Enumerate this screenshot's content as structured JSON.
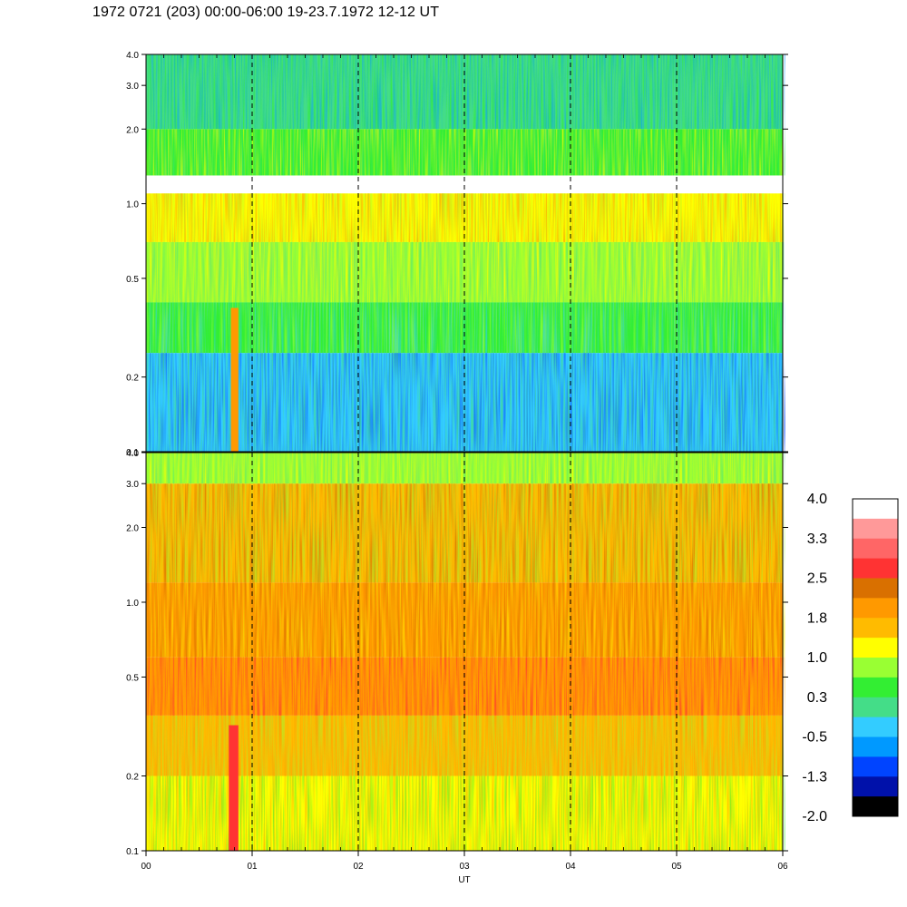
{
  "title": "1972 0721 (203) 00:00-06:00 19-23.7.1972  12-12 UT",
  "chart_data": [
    {
      "type": "heatmap",
      "panel": "upper",
      "xlabel": "",
      "ylabel": "",
      "x_range": [
        0,
        6
      ],
      "y_range": [
        0.1,
        4.0
      ],
      "y_scale": "log",
      "y_ticks": [
        "4.0",
        "3.0",
        "2.0",
        "1.0",
        "0.5",
        "0.2",
        "0.1"
      ],
      "y_tick_values": [
        4.0,
        3.0,
        2.0,
        1.0,
        0.5,
        0.2,
        0.1
      ],
      "vertical_dashed_lines_at_hours": [
        1,
        2,
        3,
        4,
        5
      ],
      "bands": [
        {
          "y_from": 2.0,
          "y_to": 4.0,
          "level": 0.0,
          "note": "green/cyan mix"
        },
        {
          "y_from": 1.3,
          "y_to": 2.0,
          "level": 0.6
        },
        {
          "y_from": 0.7,
          "y_to": 1.1,
          "level": 1.3
        },
        {
          "y_from": 0.4,
          "y_to": 0.7,
          "level": 0.8
        },
        {
          "y_from": 0.25,
          "y_to": 0.4,
          "level": 0.4
        },
        {
          "y_from": 0.1,
          "y_to": 0.25,
          "level": -0.4
        }
      ],
      "features": [
        {
          "x_from": 0.8,
          "x_to": 0.87,
          "y_from": 0.1,
          "y_to": 0.38,
          "level": 1.8
        }
      ]
    },
    {
      "type": "heatmap",
      "panel": "lower",
      "xlabel": "UT",
      "ylabel": "",
      "x_range": [
        0,
        6
      ],
      "x_ticks": [
        "00",
        "01",
        "02",
        "03",
        "04",
        "05",
        "06"
      ],
      "x_tick_values": [
        0,
        1,
        2,
        3,
        4,
        5,
        6
      ],
      "y_range": [
        0.1,
        4.0
      ],
      "y_scale": "log",
      "y_ticks": [
        "4.0",
        "3.0",
        "2.0",
        "1.0",
        "0.5",
        "0.2",
        "0.1"
      ],
      "y_tick_values": [
        4.0,
        3.0,
        2.0,
        1.0,
        0.5,
        0.2,
        0.1
      ],
      "vertical_dashed_lines_at_hours": [
        1,
        2,
        3,
        4,
        5
      ],
      "bands": [
        {
          "y_from": 3.0,
          "y_to": 4.0,
          "level": 0.8
        },
        {
          "y_from": 1.2,
          "y_to": 3.0,
          "level": 1.6
        },
        {
          "y_from": 0.6,
          "y_to": 1.2,
          "level": 1.8
        },
        {
          "y_from": 0.35,
          "y_to": 0.6,
          "level": 2.1
        },
        {
          "y_from": 0.2,
          "y_to": 0.35,
          "level": 1.5
        },
        {
          "y_from": 0.1,
          "y_to": 0.2,
          "level": 1.1
        }
      ],
      "features": [
        {
          "x_from": 0.78,
          "x_to": 0.87,
          "y_from": 0.1,
          "y_to": 0.32,
          "level": 2.7
        }
      ]
    }
  ],
  "colorbar": {
    "labels": [
      "4.0",
      "3.3",
      "2.5",
      "1.8",
      "1.0",
      "0.3",
      "-0.5",
      "-1.3",
      "-2.0"
    ],
    "colors_top_to_bottom": [
      "#ffffff",
      "#ff9999",
      "#ff6666",
      "#ff3333",
      "#d97000",
      "#ff9900",
      "#ffbb00",
      "#ffff00",
      "#99ff33",
      "#33ee33",
      "#44dd88",
      "#33ccff",
      "#0099ff",
      "#0044ff",
      "#0011aa",
      "#000000"
    ]
  }
}
